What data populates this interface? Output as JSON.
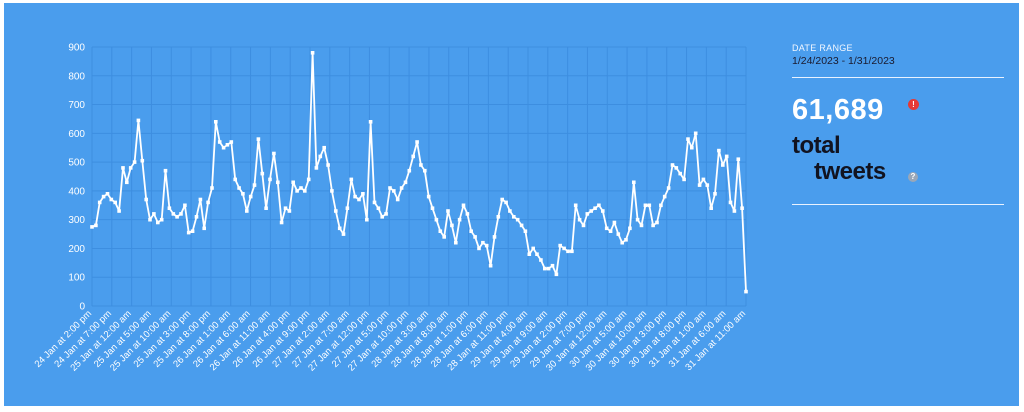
{
  "panel": {
    "date_range_label": "DATE RANGE",
    "date_range_value": "1/24/2023 - 1/31/2023",
    "total_count": "61,689",
    "total_label_line1": "total",
    "total_label_line2": "tweets",
    "alert_icon": "!",
    "help_icon": "?"
  },
  "colors": {
    "background": "#4a9ded",
    "line": "#ffffff",
    "grid": "#3d8ee0",
    "accent_red": "#e53935"
  },
  "chart_data": {
    "type": "line",
    "title": "",
    "xlabel": "",
    "ylabel": "",
    "ylim": [
      0,
      900
    ],
    "yticks": [
      0,
      100,
      200,
      300,
      400,
      500,
      600,
      700,
      800,
      900
    ],
    "grid": true,
    "x_tick_labels": [
      "24 Jan at 2:00 pm",
      "24 Jan at 7:00 pm",
      "25 Jan at 12:00 am",
      "25 Jan at 5:00 am",
      "25 Jan at 10:00 am",
      "25 Jan at 3:00 pm",
      "25 Jan at 8:00 pm",
      "26 Jan at 1:00 am",
      "26 Jan at 6:00 am",
      "26 Jan at 11:00 am",
      "26 Jan at 4:00 pm",
      "26 Jan at 9:00 pm",
      "27 Jan at 2:00 am",
      "27 Jan at 7:00 am",
      "27 Jan at 12:00 pm",
      "27 Jan at 5:00 pm",
      "27 Jan at 10:00 pm",
      "28 Jan at 3:00 am",
      "28 Jan at 8:00 am",
      "28 Jan at 1:00 pm",
      "28 Jan at 6:00 pm",
      "28 Jan at 11:00 pm",
      "29 Jan at 4:00 am",
      "29 Jan at 9:00 am",
      "29 Jan at 2:00 pm",
      "29 Jan at 7:00 pm",
      "30 Jan at 12:00 am",
      "30 Jan at 5:00 am",
      "30 Jan at 10:00 am",
      "30 Jan at 3:00 pm",
      "30 Jan at 8:00 pm",
      "31 Jan at 1:00 am",
      "31 Jan at 6:00 am",
      "31 Jan at 11:00 am"
    ],
    "values": [
      275,
      280,
      360,
      380,
      390,
      370,
      360,
      330,
      480,
      430,
      480,
      500,
      645,
      505,
      370,
      300,
      320,
      290,
      300,
      470,
      340,
      320,
      310,
      320,
      350,
      255,
      260,
      310,
      370,
      270,
      360,
      410,
      640,
      570,
      550,
      560,
      570,
      440,
      410,
      390,
      330,
      380,
      420,
      580,
      460,
      340,
      440,
      530,
      430,
      290,
      340,
      330,
      430,
      400,
      410,
      400,
      440,
      880,
      480,
      520,
      550,
      490,
      400,
      330,
      270,
      250,
      340,
      440,
      380,
      370,
      390,
      300,
      640,
      360,
      340,
      310,
      320,
      410,
      400,
      370,
      410,
      430,
      470,
      520,
      570,
      490,
      470,
      380,
      340,
      300,
      260,
      240,
      330,
      280,
      220,
      300,
      350,
      320,
      260,
      240,
      200,
      220,
      210,
      140,
      240,
      310,
      370,
      360,
      330,
      310,
      300,
      280,
      260,
      180,
      200,
      180,
      160,
      130,
      130,
      140,
      110,
      210,
      200,
      190,
      190,
      350,
      300,
      280,
      320,
      330,
      340,
      350,
      330,
      270,
      260,
      290,
      250,
      220,
      230,
      270,
      430,
      300,
      280,
      350,
      350,
      280,
      290,
      350,
      380,
      410,
      490,
      480,
      460,
      440,
      580,
      550,
      600,
      420,
      440,
      420,
      340,
      390,
      540,
      490,
      520,
      360,
      330,
      510,
      340,
      50
    ]
  }
}
